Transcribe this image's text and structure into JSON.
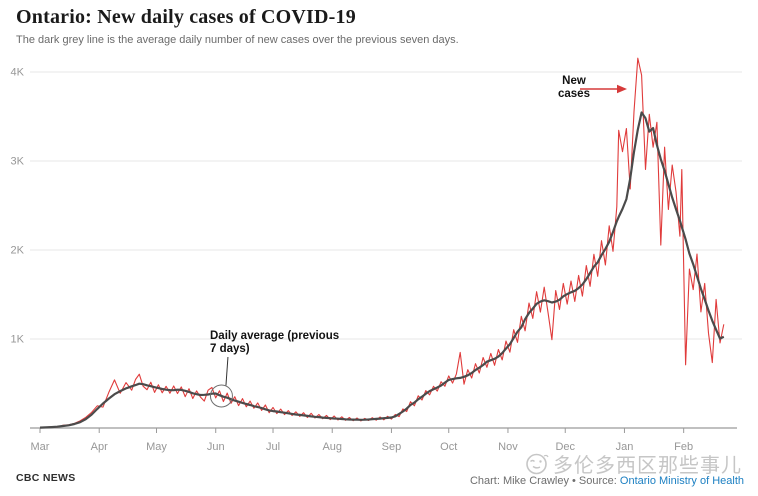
{
  "header": {
    "title": "Ontario: New daily cases of COVID-19",
    "subtitle": "The dark grey line is the average daily number of new cases over the previous seven days."
  },
  "footer": {
    "brand": "CBC NEWS",
    "attribution_prefix": "Chart: Mike Crawley • Source: ",
    "source_link": "Ontario Ministry of Health",
    "source_link_color": "#1b7fc2"
  },
  "watermark": {
    "icon": "winking-face-icon",
    "text": "多伦多西区那些事儿"
  },
  "chart_data": {
    "type": "line",
    "title": "Ontario: New daily cases of COVID-19",
    "subtitle": "The dark grey line is the average daily number of new cases over the previous seven days.",
    "grid": "horizontal",
    "legend_position": "none",
    "x_axis": {
      "unit": "months (Mar 2020 – Feb 2021)",
      "tick_labels": [
        "Mar",
        "Apr",
        "May",
        "Jun",
        "Jul",
        "Aug",
        "Sep",
        "Oct",
        "Nov",
        "Dec",
        "Jan",
        "Feb"
      ],
      "month_start_days": [
        0,
        31,
        61,
        92,
        122,
        153,
        184,
        214,
        245,
        275,
        306,
        337
      ],
      "domain_days": [
        0,
        358
      ]
    },
    "y_axis": {
      "ticks": [
        {
          "label": "1K",
          "value": 1000
        },
        {
          "label": "2K",
          "value": 2000
        },
        {
          "label": "3K",
          "value": 3000
        },
        {
          "label": "4K",
          "value": 4000
        }
      ],
      "range": [
        0,
        4400
      ]
    },
    "series": [
      {
        "id": "new_cases",
        "name": "New cases",
        "color": "#e03b3b",
        "line": "thin"
      },
      {
        "id": "seven_day_average",
        "name": "Daily average (previous 7 days)",
        "color": "#4b4b4b",
        "line": "thick"
      }
    ],
    "points": {
      "day": [
        0,
        3,
        6,
        9,
        12,
        15,
        18,
        21,
        24,
        27,
        30,
        33,
        36,
        39,
        42,
        45,
        48,
        50,
        52,
        54,
        56,
        58,
        60,
        62,
        64,
        66,
        68,
        70,
        72,
        74,
        76,
        78,
        80,
        82,
        84,
        86,
        88,
        90,
        92,
        94,
        96,
        98,
        100,
        102,
        104,
        106,
        108,
        110,
        112,
        114,
        116,
        118,
        120,
        122,
        124,
        126,
        128,
        130,
        132,
        134,
        136,
        138,
        140,
        142,
        144,
        146,
        148,
        150,
        152,
        154,
        156,
        158,
        160,
        162,
        164,
        166,
        168,
        170,
        172,
        174,
        176,
        178,
        180,
        182,
        184,
        186,
        188,
        190,
        192,
        194,
        196,
        198,
        200,
        202,
        204,
        206,
        208,
        210,
        212,
        214,
        216,
        218,
        220,
        222,
        224,
        226,
        228,
        230,
        232,
        234,
        236,
        238,
        240,
        242,
        244,
        246,
        248,
        250,
        252,
        254,
        256,
        258,
        260,
        262,
        264,
        266,
        268,
        270,
        272,
        274,
        276,
        278,
        280,
        282,
        284,
        286,
        288,
        290,
        292,
        294,
        296,
        298,
        300,
        302,
        303,
        305,
        307,
        309,
        311,
        313,
        315,
        317,
        319,
        321,
        323,
        325,
        327,
        329,
        331,
        333,
        335,
        336,
        338,
        340,
        342,
        344,
        346,
        348,
        350,
        352,
        354,
        356,
        358
      ],
      "seven_day_average": [
        5,
        7,
        10,
        15,
        22,
        30,
        45,
        65,
        100,
        150,
        215,
        275,
        330,
        380,
        415,
        445,
        468,
        482,
        498,
        492,
        480,
        470,
        458,
        448,
        438,
        430,
        426,
        425,
        430,
        428,
        418,
        406,
        390,
        380,
        371,
        373,
        376,
        385,
        388,
        368,
        352,
        340,
        324,
        308,
        295,
        282,
        270,
        258,
        246,
        236,
        224,
        210,
        198,
        190,
        185,
        178,
        172,
        165,
        158,
        152,
        147,
        142,
        136,
        130,
        126,
        122,
        117,
        113,
        110,
        107,
        104,
        101,
        98,
        96,
        94,
        93,
        92,
        93,
        96,
        99,
        102,
        106,
        110,
        114,
        118,
        132,
        158,
        185,
        218,
        258,
        285,
        322,
        352,
        385,
        415,
        435,
        455,
        478,
        510,
        540,
        550,
        558,
        563,
        575,
        592,
        618,
        652,
        678,
        708,
        745,
        762,
        778,
        802,
        842,
        892,
        942,
        1012,
        1082,
        1132,
        1222,
        1292,
        1342,
        1395,
        1420,
        1435,
        1425,
        1410,
        1420,
        1440,
        1480,
        1505,
        1525,
        1542,
        1572,
        1612,
        1672,
        1742,
        1812,
        1862,
        1942,
        2012,
        2092,
        2202,
        2322,
        2372,
        2462,
        2572,
        2802,
        3102,
        3352,
        3545,
        3480,
        3330,
        3370,
        3180,
        3020,
        2890,
        2740,
        2590,
        2460,
        2330,
        2260,
        2120,
        1960,
        1840,
        1705,
        1565,
        1445,
        1320,
        1205,
        1105,
        1005,
        1025
      ],
      "new_cases": [
        3,
        9,
        13,
        10,
        30,
        36,
        52,
        80,
        120,
        175,
        250,
        235,
        400,
        540,
        390,
        510,
        425,
        545,
        605,
        470,
        430,
        515,
        400,
        485,
        395,
        468,
        390,
        472,
        388,
        462,
        352,
        442,
        332,
        417,
        348,
        302,
        425,
        455,
        338,
        418,
        298,
        392,
        278,
        352,
        252,
        330,
        238,
        302,
        222,
        282,
        198,
        258,
        172,
        232,
        162,
        212,
        150,
        196,
        140,
        182,
        130,
        172,
        118,
        165,
        112,
        152,
        104,
        142,
        94,
        135,
        90,
        126,
        86,
        118,
        82,
        112,
        80,
        108,
        84,
        116,
        88,
        124,
        92,
        132,
        100,
        152,
        128,
        215,
        185,
        295,
        250,
        362,
        315,
        420,
        372,
        468,
        415,
        520,
        468,
        585,
        505,
        608,
        850,
        492,
        655,
        562,
        722,
        618,
        792,
        682,
        838,
        705,
        882,
        765,
        978,
        852,
        1105,
        962,
        1255,
        1092,
        1405,
        1232,
        1532,
        1302,
        1582,
        1292,
        992,
        1545,
        1332,
        1625,
        1392,
        1652,
        1422,
        1715,
        1482,
        1825,
        1592,
        1952,
        1705,
        2105,
        1832,
        2272,
        1985,
        2485,
        3345,
        3105,
        3365,
        2685,
        3555,
        4155,
        3965,
        2905,
        3525,
        3155,
        3435,
        2055,
        3155,
        2455,
        2955,
        2655,
        2155,
        2905,
        710,
        1785,
        1555,
        1955,
        1305,
        1625,
        1065,
        735,
        1445,
        955,
        1165
      ]
    },
    "annotations": [
      {
        "id": "new-cases",
        "text": "New cases",
        "series": "new_cases",
        "shape": "red-arrow-right",
        "arrow_color": "#d63a3a"
      },
      {
        "id": "daily-average",
        "text": "Daily average (previous 7 days)",
        "series": "seven_day_average",
        "shape": "circle-with-pointer",
        "target_day": 95,
        "target_value": 360
      }
    ],
    "style": {
      "gridline_color": "#e7e7e7",
      "axis_color": "#9a9a9a",
      "tick_label_color": "#979797"
    }
  }
}
